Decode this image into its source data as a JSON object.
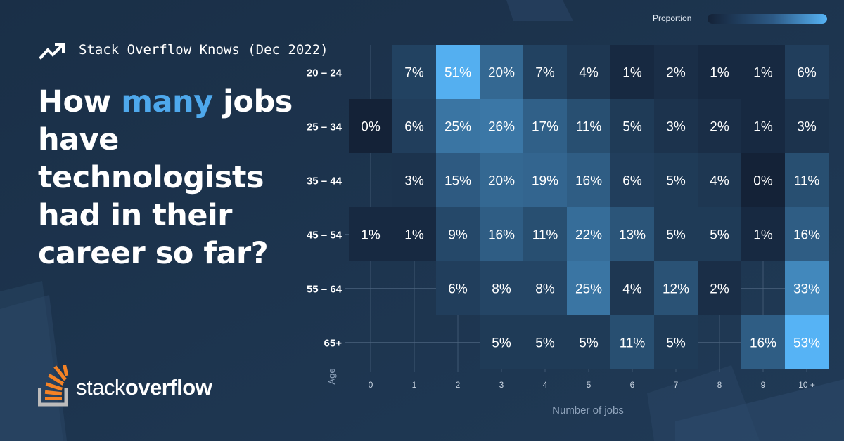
{
  "brand": {
    "name_light": "stack",
    "name_bold": "overflow",
    "logo_icon": "stack-overflow-logo-icon",
    "accent": "#f48225"
  },
  "eyebrow": {
    "icon": "trending-up-icon",
    "text": "Stack Overflow Knows (Dec 2022)"
  },
  "headline": {
    "before": "How ",
    "highlight": "many",
    "after": " jobs have technologists had in their career so far?",
    "highlight_color": "#4ea8ec"
  },
  "legend": {
    "label": "Proportion",
    "low_color": "#142237",
    "high_color": "#56b3f5"
  },
  "chart_data": {
    "type": "heatmap",
    "xlabel": "Number of jobs",
    "ylabel": "Age",
    "x_categories": [
      "0",
      "1",
      "2",
      "3",
      "4",
      "5",
      "6",
      "7",
      "8",
      "9",
      "10 +"
    ],
    "y_categories": [
      "20 – 24",
      "25 – 34",
      "35 – 44",
      "45 – 54",
      "55 – 64",
      "65+"
    ],
    "values": [
      [
        null,
        7,
        51,
        20,
        7,
        4,
        1,
        2,
        1,
        1,
        6
      ],
      [
        0,
        6,
        25,
        26,
        17,
        11,
        5,
        3,
        2,
        1,
        3
      ],
      [
        null,
        3,
        15,
        20,
        19,
        16,
        6,
        5,
        4,
        0,
        11
      ],
      [
        1,
        1,
        9,
        16,
        11,
        22,
        13,
        5,
        5,
        1,
        16
      ],
      [
        null,
        null,
        6,
        8,
        8,
        25,
        4,
        12,
        2,
        null,
        33
      ],
      [
        null,
        null,
        null,
        5,
        5,
        5,
        11,
        5,
        null,
        16,
        53
      ]
    ],
    "value_suffix": "%",
    "color_scale": [
      "#142237",
      "#56b3f5"
    ],
    "grid": true,
    "legend_position": "top-right"
  }
}
